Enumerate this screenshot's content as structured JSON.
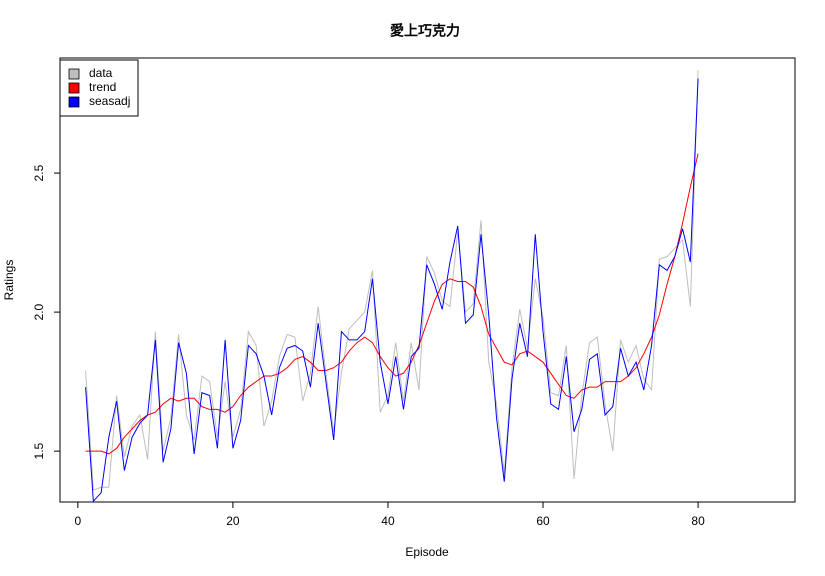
{
  "chart_data": {
    "type": "line",
    "title": "愛上巧克力",
    "xlabel": "Episode",
    "ylabel": "Ratings",
    "x": [
      1,
      2,
      3,
      4,
      5,
      6,
      7,
      8,
      9,
      10,
      11,
      12,
      13,
      14,
      15,
      16,
      17,
      18,
      19,
      20,
      21,
      22,
      23,
      24,
      25,
      26,
      27,
      28,
      29,
      30,
      31,
      32,
      33,
      34,
      35,
      36,
      37,
      38,
      39,
      40,
      41,
      42,
      43,
      44,
      45,
      46,
      47,
      48,
      49,
      50,
      51,
      52,
      53,
      54,
      55,
      56,
      57,
      58,
      59,
      60,
      61,
      62,
      63,
      64,
      65,
      66,
      67,
      68,
      69,
      70,
      71,
      72,
      73,
      74,
      75,
      76,
      77,
      78,
      79,
      80
    ],
    "series": [
      {
        "name": "data",
        "color": "#bebebe",
        "values": [
          1.79,
          1.36,
          1.37,
          1.37,
          1.7,
          1.48,
          1.59,
          1.63,
          1.47,
          1.93,
          1.5,
          1.62,
          1.92,
          1.63,
          1.54,
          1.77,
          1.75,
          1.55,
          1.75,
          1.55,
          1.65,
          1.93,
          1.88,
          1.59,
          1.68,
          1.84,
          1.92,
          1.91,
          1.68,
          1.78,
          2.02,
          1.78,
          1.57,
          1.78,
          1.94,
          1.97,
          2.0,
          2.15,
          1.64,
          1.7,
          1.89,
          1.68,
          1.89,
          1.72,
          2.2,
          2.14,
          2.04,
          2.02,
          2.29,
          2.0,
          2.03,
          2.33,
          1.82,
          1.67,
          1.42,
          1.8,
          2.01,
          1.87,
          2.12,
          1.98,
          1.71,
          1.7,
          1.88,
          1.4,
          1.7,
          1.89,
          1.91,
          1.67,
          1.5,
          1.9,
          1.82,
          1.88,
          1.76,
          1.72,
          2.19,
          2.2,
          2.23,
          2.26,
          2.02,
          2.87
        ]
      },
      {
        "name": "trend",
        "color": "#ff0000",
        "values": [
          1.5,
          1.5,
          1.5,
          1.49,
          1.51,
          1.55,
          1.58,
          1.61,
          1.63,
          1.64,
          1.67,
          1.69,
          1.68,
          1.69,
          1.69,
          1.66,
          1.65,
          1.65,
          1.64,
          1.66,
          1.7,
          1.73,
          1.75,
          1.77,
          1.77,
          1.78,
          1.8,
          1.83,
          1.84,
          1.82,
          1.79,
          1.79,
          1.8,
          1.82,
          1.86,
          1.89,
          1.91,
          1.89,
          1.84,
          1.8,
          1.77,
          1.78,
          1.82,
          1.88,
          1.96,
          2.04,
          2.1,
          2.12,
          2.11,
          2.11,
          2.09,
          2.02,
          1.92,
          1.87,
          1.82,
          1.81,
          1.85,
          1.86,
          1.84,
          1.82,
          1.78,
          1.74,
          1.7,
          1.69,
          1.72,
          1.73,
          1.73,
          1.75,
          1.75,
          1.75,
          1.77,
          1.8,
          1.85,
          1.91,
          1.99,
          2.1,
          2.2,
          2.32,
          2.45,
          2.57
        ]
      },
      {
        "name": "seasadj",
        "color": "#0000ff",
        "values": [
          1.73,
          1.32,
          1.35,
          1.55,
          1.68,
          1.43,
          1.55,
          1.6,
          1.63,
          1.9,
          1.46,
          1.58,
          1.89,
          1.78,
          1.49,
          1.71,
          1.7,
          1.51,
          1.9,
          1.51,
          1.61,
          1.88,
          1.85,
          1.77,
          1.63,
          1.8,
          1.87,
          1.88,
          1.86,
          1.73,
          1.96,
          1.75,
          1.54,
          1.93,
          1.9,
          1.9,
          1.93,
          2.12,
          1.82,
          1.67,
          1.84,
          1.65,
          1.84,
          1.87,
          2.17,
          2.1,
          2.01,
          2.18,
          2.31,
          1.96,
          1.99,
          2.28,
          1.99,
          1.62,
          1.39,
          1.76,
          1.96,
          1.84,
          2.28,
          1.93,
          1.67,
          1.65,
          1.84,
          1.57,
          1.65,
          1.83,
          1.85,
          1.63,
          1.66,
          1.87,
          1.77,
          1.82,
          1.72,
          1.88,
          2.17,
          2.15,
          2.2,
          2.3,
          2.18,
          2.84
        ]
      }
    ],
    "xlim": [
      -2.3,
      92.5
    ],
    "ylim": [
      1.317,
      2.914
    ],
    "xticks": [
      0,
      20,
      40,
      60,
      80
    ],
    "yticks": [
      1.5,
      {
        "value": 2,
        "label": "2.0"
      },
      2.5
    ],
    "legend": "top-left"
  }
}
